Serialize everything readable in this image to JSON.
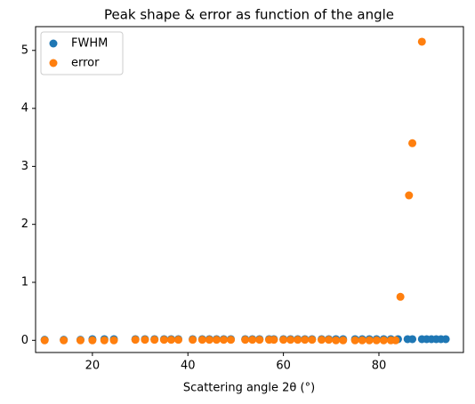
{
  "chart_data": {
    "type": "scatter",
    "title": "Peak shape & error as function of the angle",
    "x_label": "Scattering angle 2θ (°)",
    "xlim": [
      8.1,
      97.7
    ],
    "ylim": [
      -0.21,
      5.41
    ],
    "xticks": [
      20,
      40,
      60,
      80
    ],
    "yticks": [
      0,
      1,
      2,
      3,
      4,
      5
    ],
    "legend": "upper left",
    "series": [
      {
        "name": "FWHM",
        "color": "#1f77b4",
        "x": [
          10,
          14,
          17.5,
          20,
          22.5,
          24.5,
          29,
          31,
          33,
          35,
          36.5,
          38,
          41,
          43,
          44.5,
          46,
          47.5,
          49,
          52,
          53.5,
          55,
          57,
          58,
          60,
          61.5,
          63,
          64.5,
          66,
          68,
          69.5,
          71,
          72.5,
          75,
          76.5,
          78,
          79.5,
          81,
          82.5,
          84,
          86,
          87,
          89,
          90,
          91,
          92,
          93,
          94
        ],
        "values": [
          0.01,
          0.01,
          0.01,
          0.02,
          0.02,
          0.02,
          0.02,
          0.02,
          0.02,
          0.02,
          0.02,
          0.02,
          0.02,
          0.02,
          0.02,
          0.02,
          0.02,
          0.02,
          0.02,
          0.02,
          0.02,
          0.02,
          0.02,
          0.02,
          0.02,
          0.02,
          0.02,
          0.02,
          0.02,
          0.02,
          0.02,
          0.02,
          0.02,
          0.02,
          0.02,
          0.02,
          0.02,
          0.02,
          0.02,
          0.02,
          0.02,
          0.02,
          0.02,
          0.02,
          0.02,
          0.02,
          0.02
        ]
      },
      {
        "name": "error",
        "color": "#ff7f0e",
        "x": [
          10,
          14,
          17.5,
          20,
          22.5,
          24.5,
          29,
          31,
          33,
          35,
          36.5,
          38,
          41,
          43,
          44.5,
          46,
          47.5,
          49,
          52,
          53.5,
          55,
          57,
          58,
          60,
          61.5,
          63,
          64.5,
          66,
          68,
          69.5,
          71,
          72.5,
          75,
          76.5,
          78,
          79.5,
          81,
          82.5,
          83.5,
          84.5,
          86.3,
          87,
          89
        ],
        "values": [
          0,
          0,
          0,
          0,
          0,
          0,
          0.01,
          0.01,
          0.01,
          0.01,
          0.01,
          0.01,
          0.01,
          0.01,
          0.01,
          0.01,
          0.01,
          0.01,
          0.01,
          0.01,
          0.01,
          0.01,
          0.01,
          0.01,
          0.01,
          0.01,
          0.01,
          0.01,
          0.01,
          0.01,
          0,
          0,
          0,
          0,
          0,
          0,
          0,
          0,
          0,
          0.75,
          2.5,
          3.4,
          5.15
        ]
      }
    ]
  }
}
